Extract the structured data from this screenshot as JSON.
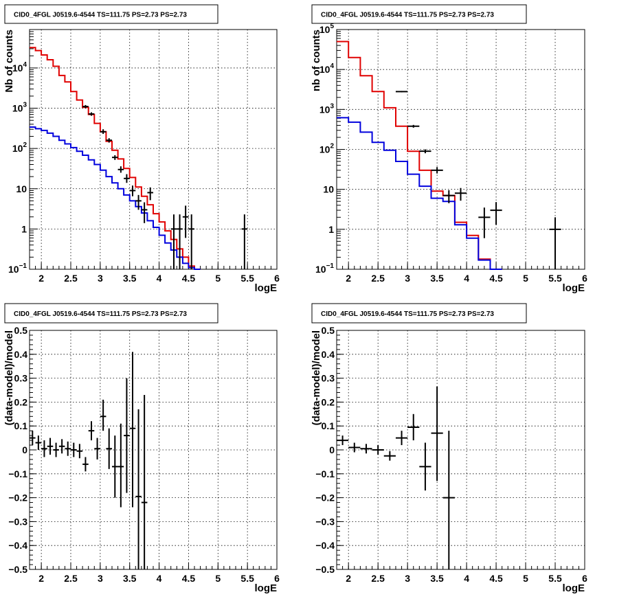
{
  "chart_data": [
    {
      "panel": "top-left",
      "type": "line",
      "title": "CID0_4FGL J0519.6-4544 TS=111.75 PS=2.73 PS=2.73",
      "xlabel": "logE",
      "ylabel": "Nb of counts",
      "xlim": [
        1.8,
        6
      ],
      "ylim": [
        0.1,
        90000
      ],
      "yscale": "log",
      "grid": true,
      "x_ticks": [
        "2",
        "2.5",
        "3",
        "3.5",
        "4",
        "4.5",
        "5",
        "5.5",
        "6"
      ],
      "y_ticks": [
        {
          "value": 0.1,
          "label": "10",
          "sup": "−1"
        },
        {
          "value": 1,
          "label": "1",
          "sup": ""
        },
        {
          "value": 10,
          "label": "10",
          "sup": ""
        },
        {
          "value": 100,
          "label": "10",
          "sup": "2"
        },
        {
          "value": 1000,
          "label": "10",
          "sup": "3"
        },
        {
          "value": 10000,
          "label": "10",
          "sup": "4"
        }
      ],
      "bin_width": 0.1,
      "bins_start": 1.8,
      "series": [
        {
          "color": "#e00000",
          "style": "step",
          "values": [
            32000,
            27000,
            21000,
            16000,
            11000,
            6500,
            4500,
            2600,
            1600,
            1050,
            700,
            420,
            260,
            150,
            90,
            55,
            32,
            19,
            11,
            6.5,
            4,
            2.4,
            1.5,
            0.9,
            0.55,
            0.32,
            0.2,
            0.12,
            0.1
          ]
        },
        {
          "color": "#0000dd",
          "style": "step",
          "values": [
            340,
            310,
            280,
            240,
            200,
            160,
            130,
            105,
            85,
            68,
            52,
            40,
            29,
            20,
            14,
            10,
            7,
            5,
            3.6,
            2.5,
            1.6,
            1.1,
            0.7,
            0.45,
            0.3,
            0.2,
            0.14,
            0.11,
            0.1
          ]
        },
        {
          "color": "#000000",
          "style": "errorbar",
          "points": [
            {
              "x": 2.75,
              "y": 1100,
              "lo": 1000,
              "hi": 1200
            },
            {
              "x": 2.85,
              "y": 720,
              "lo": 650,
              "hi": 790
            },
            {
              "x": 3.05,
              "y": 260,
              "lo": 230,
              "hi": 300
            },
            {
              "x": 3.15,
              "y": 160,
              "lo": 140,
              "hi": 180
            },
            {
              "x": 3.25,
              "y": 60,
              "lo": 52,
              "hi": 68
            },
            {
              "x": 3.35,
              "y": 30,
              "lo": 25,
              "hi": 36
            },
            {
              "x": 3.45,
              "y": 18,
              "lo": 14,
              "hi": 23
            },
            {
              "x": 3.55,
              "y": 9,
              "lo": 6.5,
              "hi": 12
            },
            {
              "x": 3.65,
              "y": 5,
              "lo": 3,
              "hi": 7
            },
            {
              "x": 3.75,
              "y": 3,
              "lo": 1.4,
              "hi": 4.6
            },
            {
              "x": 3.85,
              "y": 8,
              "lo": 5.2,
              "hi": 10.8
            },
            {
              "x": 4.25,
              "y": 1,
              "lo": 0.1,
              "hi": 2.3
            },
            {
              "x": 4.35,
              "y": 1,
              "lo": 0.1,
              "hi": 2.3
            },
            {
              "x": 4.45,
              "y": 2,
              "lo": 0.6,
              "hi": 3.8
            },
            {
              "x": 4.55,
              "y": 1,
              "lo": 0.1,
              "hi": 2.3
            },
            {
              "x": 5.45,
              "y": 1,
              "lo": 0.1,
              "hi": 2.3
            }
          ]
        }
      ]
    },
    {
      "panel": "top-right",
      "type": "line",
      "title": "CID0_4FGL J0519.6-4544 TS=111.75 PS=2.73 PS=2.73",
      "xlabel": "logE",
      "ylabel": "nb of counts",
      "xlim": [
        1.8,
        6
      ],
      "ylim": [
        0.1,
        100000
      ],
      "yscale": "log",
      "grid": true,
      "x_ticks": [
        "2",
        "2.5",
        "3",
        "3.5",
        "4",
        "4.5",
        "5",
        "5.5",
        "6"
      ],
      "y_ticks": [
        {
          "value": 0.1,
          "label": "10",
          "sup": "−1"
        },
        {
          "value": 1,
          "label": "1",
          "sup": ""
        },
        {
          "value": 10,
          "label": "10",
          "sup": ""
        },
        {
          "value": 100,
          "label": "10",
          "sup": "2"
        },
        {
          "value": 1000,
          "label": "10",
          "sup": "3"
        },
        {
          "value": 10000,
          "label": "10",
          "sup": "4"
        },
        {
          "value": 100000,
          "label": "10",
          "sup": "5"
        }
      ],
      "bin_width": 0.2,
      "bins_start": 1.8,
      "series": [
        {
          "color": "#e00000",
          "style": "step",
          "values": [
            50000,
            20000,
            7000,
            2800,
            1100,
            380,
            90,
            30,
            9,
            7,
            1.5,
            0.7,
            0.18,
            0.1
          ]
        },
        {
          "color": "#0000dd",
          "style": "step",
          "values": [
            620,
            480,
            270,
            150,
            95,
            50,
            24,
            12,
            6,
            5,
            1.3,
            0.6,
            0.17,
            0.1
          ]
        },
        {
          "color": "#000000",
          "style": "errorbar",
          "points": [
            {
              "x": 2.9,
              "y": 2800,
              "lo": 2700,
              "hi": 2900
            },
            {
              "x": 3.1,
              "y": 380,
              "lo": 350,
              "hi": 410
            },
            {
              "x": 3.3,
              "y": 90,
              "lo": 80,
              "hi": 100
            },
            {
              "x": 3.5,
              "y": 30,
              "lo": 25,
              "hi": 36
            },
            {
              "x": 3.7,
              "y": 7,
              "lo": 4.5,
              "hi": 9.5
            },
            {
              "x": 3.9,
              "y": 8,
              "lo": 5.2,
              "hi": 10.8
            },
            {
              "x": 4.3,
              "y": 2,
              "lo": 0.6,
              "hi": 3.5
            },
            {
              "x": 4.5,
              "y": 3,
              "lo": 1.3,
              "hi": 4.8
            },
            {
              "x": 5.5,
              "y": 1,
              "lo": 0.1,
              "hi": 2
            }
          ]
        }
      ]
    },
    {
      "panel": "bottom-left",
      "type": "scatter",
      "title": "CID0_4FGL J0519.6-4544 TS=111.75 PS=2.73 PS=2.73",
      "xlabel": "logE",
      "ylabel": "(data-model)/model",
      "xlim": [
        1.8,
        6
      ],
      "ylim": [
        -0.5,
        0.5
      ],
      "yscale": "linear",
      "grid": true,
      "x_ticks": [
        "2",
        "2.5",
        "3",
        "3.5",
        "4",
        "4.5",
        "5",
        "5.5",
        "6"
      ],
      "y_ticks": [
        "−0.5",
        "−0.4",
        "−0.3",
        "−0.2",
        "−0.1",
        "0",
        "0.1",
        "0.2",
        "0.3",
        "0.4",
        "0.5"
      ],
      "bin_width": 0.1,
      "points": [
        {
          "x": 1.85,
          "y": 0.05,
          "lo": 0.02,
          "hi": 0.08
        },
        {
          "x": 1.95,
          "y": 0.03,
          "lo": 0.0,
          "hi": 0.06
        },
        {
          "x": 2.05,
          "y": 0.005,
          "lo": -0.03,
          "hi": 0.04
        },
        {
          "x": 2.15,
          "y": 0.015,
          "lo": -0.02,
          "hi": 0.05
        },
        {
          "x": 2.25,
          "y": 0.0,
          "lo": -0.03,
          "hi": 0.03
        },
        {
          "x": 2.35,
          "y": 0.015,
          "lo": -0.015,
          "hi": 0.045
        },
        {
          "x": 2.45,
          "y": 0.005,
          "lo": -0.025,
          "hi": 0.035
        },
        {
          "x": 2.55,
          "y": 0.0,
          "lo": -0.03,
          "hi": 0.03
        },
        {
          "x": 2.65,
          "y": -0.005,
          "lo": -0.035,
          "hi": 0.025
        },
        {
          "x": 2.75,
          "y": -0.06,
          "lo": -0.09,
          "hi": -0.03
        },
        {
          "x": 2.85,
          "y": 0.08,
          "lo": 0.04,
          "hi": 0.12
        },
        {
          "x": 2.95,
          "y": 0.005,
          "lo": -0.04,
          "hi": 0.05
        },
        {
          "x": 3.05,
          "y": 0.14,
          "lo": 0.08,
          "hi": 0.21
        },
        {
          "x": 3.15,
          "y": 0.005,
          "lo": -0.08,
          "hi": 0.09
        },
        {
          "x": 3.25,
          "y": -0.07,
          "lo": -0.2,
          "hi": 0.06
        },
        {
          "x": 3.35,
          "y": -0.07,
          "lo": -0.24,
          "hi": 0.11
        },
        {
          "x": 3.45,
          "y": 0.06,
          "lo": -0.18,
          "hi": 0.3
        },
        {
          "x": 3.55,
          "y": 0.09,
          "lo": -0.24,
          "hi": 0.41
        },
        {
          "x": 3.65,
          "y": -0.195,
          "lo": -0.5,
          "hi": 0.17
        },
        {
          "x": 3.75,
          "y": -0.22,
          "lo": -0.5,
          "hi": 0.23
        }
      ]
    },
    {
      "panel": "bottom-right",
      "type": "scatter",
      "title": "CID0_4FGL J0519.6-4544 TS=111.75 PS=2.73 PS=2.73",
      "xlabel": "logE",
      "ylabel": "(data-model)/model",
      "xlim": [
        1.8,
        6
      ],
      "ylim": [
        -0.5,
        0.5
      ],
      "yscale": "linear",
      "grid": true,
      "x_ticks": [
        "2",
        "2.5",
        "3",
        "3.5",
        "4",
        "4.5",
        "5",
        "5.5",
        "6"
      ],
      "y_ticks": [
        "−0.5",
        "−0.4",
        "−0.3",
        "−0.2",
        "−0.1",
        "0",
        "0.1",
        "0.2",
        "0.3",
        "0.4",
        "0.5"
      ],
      "bin_width": 0.2,
      "points": [
        {
          "x": 1.9,
          "y": 0.04,
          "lo": 0.02,
          "hi": 0.06
        },
        {
          "x": 2.1,
          "y": 0.01,
          "lo": -0.01,
          "hi": 0.03
        },
        {
          "x": 2.3,
          "y": 0.005,
          "lo": -0.015,
          "hi": 0.025
        },
        {
          "x": 2.5,
          "y": 0.0,
          "lo": -0.02,
          "hi": 0.02
        },
        {
          "x": 2.7,
          "y": -0.025,
          "lo": -0.045,
          "hi": -0.005
        },
        {
          "x": 2.9,
          "y": 0.05,
          "lo": 0.02,
          "hi": 0.08
        },
        {
          "x": 3.1,
          "y": 0.095,
          "lo": 0.04,
          "hi": 0.15
        },
        {
          "x": 3.3,
          "y": -0.07,
          "lo": -0.17,
          "hi": 0.03
        },
        {
          "x": 3.5,
          "y": 0.07,
          "lo": -0.13,
          "hi": 0.265
        },
        {
          "x": 3.7,
          "y": -0.2,
          "lo": -0.5,
          "hi": 0.08
        }
      ]
    }
  ]
}
